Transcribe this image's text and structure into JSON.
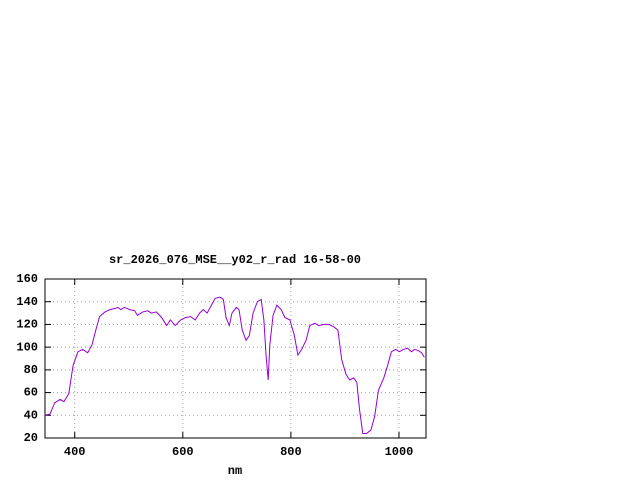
{
  "chart_data": {
    "type": "line",
    "title": "sr_2026_076_MSE__y02_r_rad 16-58-00",
    "xlabel": "nm",
    "xlim": [
      345,
      1050
    ],
    "xticks": [
      400,
      600,
      800,
      1000
    ],
    "ylim": [
      20,
      160
    ],
    "yticks": [
      20,
      40,
      60,
      80,
      100,
      120,
      140,
      160
    ],
    "grid": true,
    "series": [
      {
        "color": "#9400d3",
        "x": [
          345,
          354,
          363,
          373,
          380,
          389,
          397,
          406,
          415,
          424,
          432,
          439,
          446,
          456,
          465,
          474,
          480,
          485,
          492,
          502,
          511,
          516,
          526,
          535,
          542,
          551,
          561,
          570,
          577,
          586,
          596,
          605,
          614,
          623,
          631,
          638,
          645,
          653,
          660,
          669,
          675,
          680,
          686,
          691,
          699,
          704,
          710,
          717,
          723,
          730,
          738,
          745,
          750,
          754,
          758,
          761,
          767,
          774,
          782,
          789,
          798,
          806,
          813,
          820,
          828,
          835,
          844,
          852,
          861,
          870,
          879,
          887,
          894,
          902,
          909,
          916,
          922,
          927,
          933,
          940,
          948,
          955,
          962,
          972,
          979,
          986,
          994,
          1001,
          1008,
          1016,
          1023,
          1029,
          1036,
          1042,
          1047
        ],
        "values": [
          40,
          41,
          51,
          54,
          52,
          59,
          84,
          96,
          98,
          95,
          102,
          115,
          127,
          131,
          133,
          134,
          135,
          133,
          135,
          133,
          132,
          128,
          131,
          132,
          130,
          131,
          126,
          119,
          124,
          119,
          124,
          126,
          127,
          124,
          130,
          133,
          130,
          137,
          143,
          144,
          142,
          126,
          119,
          130,
          135,
          133,
          115,
          106,
          110,
          130,
          140,
          142,
          124,
          93,
          71,
          102,
          128,
          137,
          133,
          126,
          124,
          111,
          93,
          98,
          106,
          119,
          121,
          119,
          120,
          120,
          118,
          115,
          89,
          76,
          71,
          73,
          69,
          45,
          24,
          24,
          27,
          39,
          62,
          73,
          84,
          96,
          98,
          96,
          98,
          99,
          96,
          98,
          97,
          95,
          91
        ]
      }
    ]
  }
}
